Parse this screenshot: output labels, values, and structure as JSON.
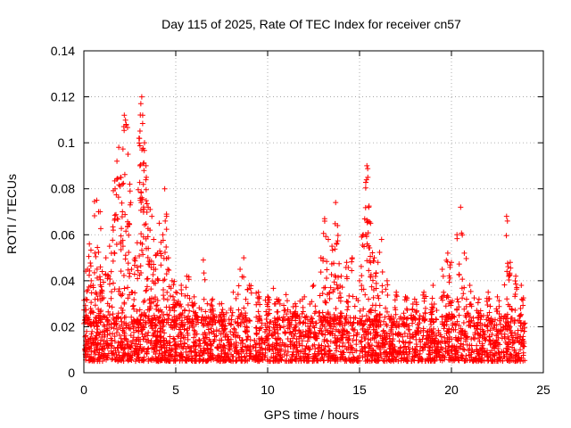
{
  "chart_data": {
    "type": "scatter",
    "title": "Day 115 of 2025, Rate Of TEC Index for receiver cn57",
    "xlabel": "GPS time / hours",
    "ylabel": "ROTI / TECUs",
    "xlim": [
      0,
      25
    ],
    "ylim": [
      0,
      0.14
    ],
    "xticks": [
      0,
      5,
      10,
      15,
      20,
      25
    ],
    "yticks": [
      0,
      0.02,
      0.04,
      0.06,
      0.08,
      0.1,
      0.12,
      0.14
    ],
    "xtick_labels": [
      "0",
      "5",
      "10",
      "15",
      "20",
      "25"
    ],
    "ytick_labels": [
      "0",
      "0.02",
      "0.04",
      "0.06",
      "0.08",
      "0.1",
      "0.12",
      "0.14"
    ],
    "grid": true,
    "marker": "+",
    "color": "#ff0000",
    "data_x_range": [
      0,
      24
    ],
    "points": [
      [
        0.1,
        0.032
      ],
      [
        0.2,
        0.045
      ],
      [
        0.3,
        0.056
      ],
      [
        0.4,
        0.04
      ],
      [
        0.5,
        0.038
      ],
      [
        0.6,
        0.052
      ],
      [
        0.7,
        0.075
      ],
      [
        0.8,
        0.07
      ],
      [
        0.9,
        0.046
      ],
      [
        1.0,
        0.044
      ],
      [
        1.2,
        0.05
      ],
      [
        1.4,
        0.055
      ],
      [
        1.6,
        0.062
      ],
      [
        1.7,
        0.08
      ],
      [
        1.8,
        0.092
      ],
      [
        1.9,
        0.098
      ],
      [
        2.0,
        0.085
      ],
      [
        2.1,
        0.07
      ],
      [
        2.2,
        0.112
      ],
      [
        2.3,
        0.108
      ],
      [
        2.4,
        0.095
      ],
      [
        2.5,
        0.082
      ],
      [
        2.6,
        0.045
      ],
      [
        2.8,
        0.05
      ],
      [
        3.0,
        0.102
      ],
      [
        3.1,
        0.117
      ],
      [
        3.15,
        0.12
      ],
      [
        3.2,
        0.112
      ],
      [
        3.3,
        0.1
      ],
      [
        3.4,
        0.085
      ],
      [
        3.5,
        0.072
      ],
      [
        3.6,
        0.062
      ],
      [
        3.7,
        0.068
      ],
      [
        3.8,
        0.058
      ],
      [
        3.9,
        0.045
      ],
      [
        4.0,
        0.052
      ],
      [
        4.1,
        0.065
      ],
      [
        4.3,
        0.06
      ],
      [
        4.4,
        0.08
      ],
      [
        4.5,
        0.068
      ],
      [
        4.6,
        0.05
      ],
      [
        4.8,
        0.04
      ],
      [
        5.0,
        0.035
      ],
      [
        5.3,
        0.038
      ],
      [
        5.6,
        0.042
      ],
      [
        6.0,
        0.033
      ],
      [
        6.5,
        0.049
      ],
      [
        7.0,
        0.032
      ],
      [
        7.5,
        0.03
      ],
      [
        8.0,
        0.028
      ],
      [
        8.5,
        0.045
      ],
      [
        8.7,
        0.05
      ],
      [
        9.0,
        0.038
      ],
      [
        9.5,
        0.035
      ],
      [
        10.0,
        0.033
      ],
      [
        10.5,
        0.032
      ],
      [
        11.0,
        0.034
      ],
      [
        11.5,
        0.03
      ],
      [
        12.0,
        0.033
      ],
      [
        12.5,
        0.038
      ],
      [
        12.9,
        0.05
      ],
      [
        13.1,
        0.067
      ],
      [
        13.3,
        0.058
      ],
      [
        13.5,
        0.055
      ],
      [
        13.7,
        0.074
      ],
      [
        13.8,
        0.064
      ],
      [
        14.0,
        0.042
      ],
      [
        14.3,
        0.048
      ],
      [
        14.6,
        0.05
      ],
      [
        15.0,
        0.04
      ],
      [
        15.2,
        0.06
      ],
      [
        15.4,
        0.09
      ],
      [
        15.45,
        0.085
      ],
      [
        15.5,
        0.072
      ],
      [
        15.6,
        0.065
      ],
      [
        15.8,
        0.05
      ],
      [
        16.0,
        0.048
      ],
      [
        16.2,
        0.058
      ],
      [
        16.5,
        0.04
      ],
      [
        17.0,
        0.035
      ],
      [
        17.5,
        0.033
      ],
      [
        18.0,
        0.032
      ],
      [
        18.5,
        0.035
      ],
      [
        19.0,
        0.038
      ],
      [
        19.5,
        0.045
      ],
      [
        19.8,
        0.052
      ],
      [
        20.0,
        0.048
      ],
      [
        20.3,
        0.06
      ],
      [
        20.5,
        0.072
      ],
      [
        20.7,
        0.052
      ],
      [
        21.0,
        0.038
      ],
      [
        21.5,
        0.032
      ],
      [
        22.0,
        0.035
      ],
      [
        22.5,
        0.033
      ],
      [
        23.0,
        0.068
      ],
      [
        23.2,
        0.048
      ],
      [
        23.5,
        0.042
      ],
      [
        23.8,
        0.038
      ]
    ],
    "baseline_band": {
      "min": 0.005,
      "max": 0.025,
      "density": "dense"
    }
  }
}
